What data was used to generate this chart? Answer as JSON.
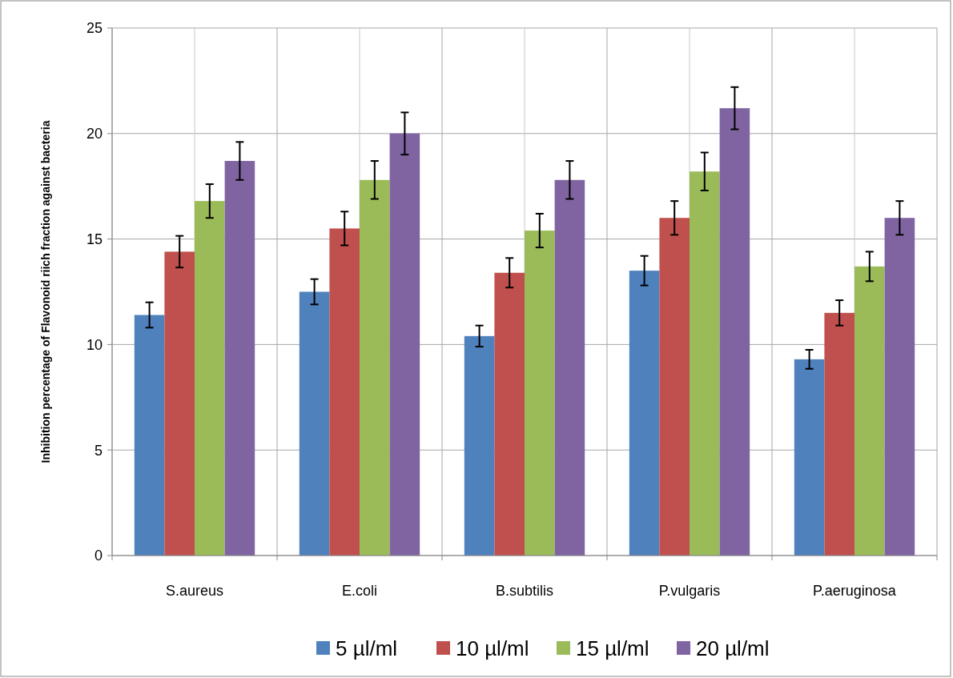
{
  "chart_data": {
    "type": "bar",
    "ylabel": "Inhibition percentage of Flavonoid riich fraction against bacteria",
    "categories": [
      "S.aureus",
      "E.coli",
      "B.subtilis",
      "P.vulgaris",
      "P.aeruginosa"
    ],
    "series": [
      {
        "name": "5 µl/ml",
        "color": "#4f81bd",
        "values": [
          11.4,
          12.5,
          10.4,
          13.5,
          9.3
        ],
        "errors": [
          0.6,
          0.6,
          0.5,
          0.7,
          0.45
        ]
      },
      {
        "name": "10 µl/ml",
        "color": "#c0504d",
        "values": [
          14.4,
          15.5,
          13.4,
          16.0,
          11.5
        ],
        "errors": [
          0.75,
          0.8,
          0.7,
          0.8,
          0.6
        ]
      },
      {
        "name": "15 µl/ml",
        "color": "#9bbb59",
        "values": [
          16.8,
          17.8,
          15.4,
          18.2,
          13.7
        ],
        "errors": [
          0.8,
          0.9,
          0.8,
          0.9,
          0.7
        ]
      },
      {
        "name": "20 µl/ml",
        "color": "#8064a2",
        "values": [
          18.7,
          20.0,
          17.8,
          21.2,
          16.0
        ],
        "errors": [
          0.9,
          1.0,
          0.9,
          1.0,
          0.8
        ]
      }
    ],
    "ylim": [
      0,
      25
    ],
    "yticks": [
      0,
      5,
      10,
      15,
      20,
      25
    ],
    "grid": true,
    "legend": "bottom"
  }
}
